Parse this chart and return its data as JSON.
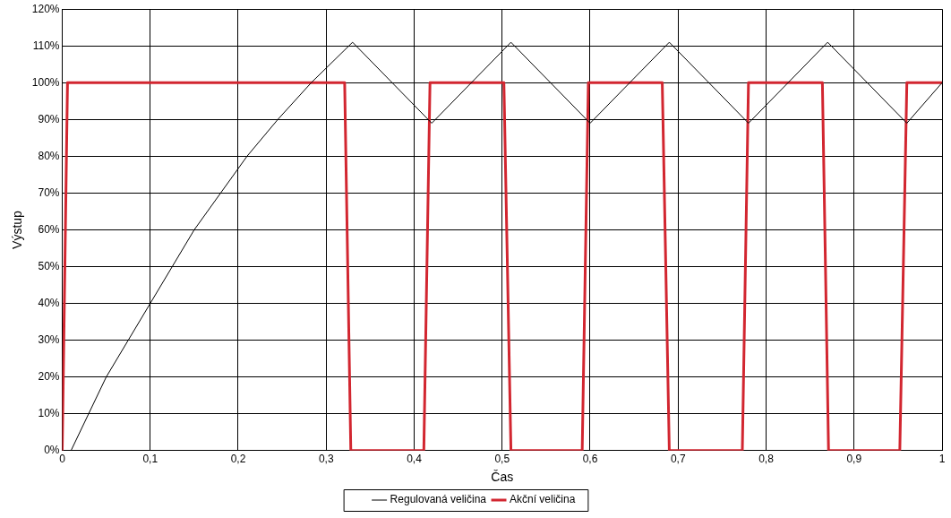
{
  "chart_data": {
    "type": "line",
    "xlabel": "Čas",
    "ylabel": "Výstup",
    "xlim": [
      0,
      1
    ],
    "ylim": [
      0,
      120
    ],
    "xticks": [
      0,
      {
        "value": 0.1,
        "label": "0,1"
      },
      {
        "value": 0.2,
        "label": "0,2"
      },
      {
        "value": 0.3,
        "label": "0,3"
      },
      {
        "value": 0.4,
        "label": "0,4"
      },
      {
        "value": 0.5,
        "label": "0,5"
      },
      {
        "value": 0.6,
        "label": "0,6"
      },
      {
        "value": 0.7,
        "label": "0,7"
      },
      {
        "value": 0.8,
        "label": "0,8"
      },
      {
        "value": 0.9,
        "label": "0,9"
      },
      1
    ],
    "yticks": [
      {
        "value": 0,
        "label": "0%"
      },
      {
        "value": 10,
        "label": "10%"
      },
      {
        "value": 20,
        "label": "20%"
      },
      {
        "value": 30,
        "label": "30%"
      },
      {
        "value": 40,
        "label": "40%"
      },
      {
        "value": 50,
        "label": "50%"
      },
      {
        "value": 60,
        "label": "60%"
      },
      {
        "value": 70,
        "label": "70%"
      },
      {
        "value": 80,
        "label": "80%"
      },
      {
        "value": 90,
        "label": "90%"
      },
      {
        "value": 100,
        "label": "100%"
      },
      {
        "value": 110,
        "label": "110%"
      },
      {
        "value": 120,
        "label": "120%"
      }
    ],
    "grid": true,
    "legend": "bottom",
    "marker": "none",
    "line_style": "solid",
    "series": [
      {
        "name": "Regulovaná veličina",
        "color": "#000000",
        "x": [
          0.01,
          0.03,
          0.05,
          0.075,
          0.1,
          0.125,
          0.15,
          0.18,
          0.21,
          0.245,
          0.283,
          0.33,
          0.42,
          0.51,
          0.6,
          0.69,
          0.78,
          0.87,
          0.96,
          1
        ],
        "values": [
          0,
          10,
          20,
          30,
          40,
          50,
          60,
          70,
          80,
          90,
          100,
          111,
          89,
          111,
          89,
          111,
          89,
          111,
          89,
          100
        ]
      },
      {
        "name": "Akční veličina",
        "color": "#d22630",
        "x": [
          0,
          0.006,
          0.321,
          0.328,
          0.411,
          0.418,
          0.502,
          0.51,
          0.591,
          0.598,
          0.682,
          0.69,
          0.773,
          0.78,
          0.864,
          0.871,
          0.952,
          0.96,
          1
        ],
        "values": [
          0,
          100,
          100,
          0,
          0,
          100,
          100,
          0,
          0,
          100,
          100,
          0,
          0,
          100,
          100,
          0,
          0,
          100,
          100
        ]
      }
    ]
  }
}
